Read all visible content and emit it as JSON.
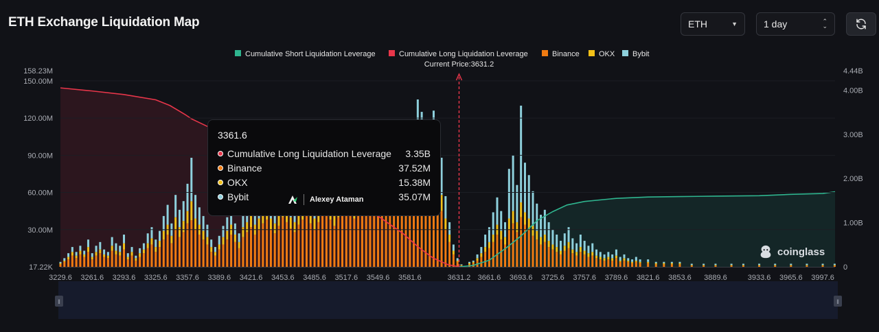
{
  "header": {
    "title": "ETH Exchange Liquidation Map",
    "coin_select": "ETH",
    "range_select": "1 day",
    "refresh_icon": "refresh-icon"
  },
  "colors": {
    "short_line": "#2fb58f",
    "long_line": "#e8364a",
    "binance": "#f07b12",
    "okx": "#f2c018",
    "bybit": "#8ed0dc",
    "background": "#111217"
  },
  "legend": [
    {
      "label": "Cumulative Short Liquidation Leverage",
      "color": "#2fb58f"
    },
    {
      "label": "Cumulative Long Liquidation Leverage",
      "color": "#e8364a"
    },
    {
      "label": "Binance",
      "color": "#f07b12"
    },
    {
      "label": "OKX",
      "color": "#f2c018"
    },
    {
      "label": "Bybit",
      "color": "#8ed0dc"
    }
  ],
  "current_price_label": "Current Price:3631.2",
  "tooltip": {
    "title": "3361.6",
    "rows": [
      {
        "label": "Cumulative Long Liquidation Leverage",
        "value": "3.35B",
        "color": "#e8364a"
      },
      {
        "label": "Binance",
        "value": "37.52M",
        "color": "#f07b12"
      },
      {
        "label": "OKX",
        "value": "15.38M",
        "color": "#f2c018"
      },
      {
        "label": "Bybit",
        "value": "35.07M",
        "color": "#8ed0dc"
      }
    ]
  },
  "watermark_name": "Alexey Ataman",
  "brand": "coinglass",
  "chart_data": {
    "type": "bar",
    "x_tick_labels": [
      "3229.6",
      "3261.6",
      "3293.6",
      "3325.6",
      "3357.6",
      "3389.6",
      "3421.6",
      "3453.6",
      "3485.6",
      "3517.6",
      "3549.6",
      "3581.6",
      "3631.2",
      "3661.6",
      "3693.6",
      "3725.6",
      "3757.6",
      "3789.6",
      "3821.6",
      "3853.6",
      "3889.6",
      "3933.6",
      "3965.6",
      "3997.6"
    ],
    "y_left_tick_labels": [
      "158.23M",
      "150.00M",
      "120.00M",
      "90.00M",
      "60.00M",
      "30.00M",
      "17.22K"
    ],
    "y_right_tick_labels": [
      "4.44B",
      "4.00B",
      "3.00B",
      "2.00B",
      "1.00B",
      "0"
    ],
    "ylim_left": [
      0,
      158.23
    ],
    "ylim_right": [
      0,
      4.44
    ],
    "current_price": 3631.2,
    "series": [
      {
        "name": "Cumulative Long Liquidation Leverage",
        "kind": "line",
        "x": [
          3229.6,
          3261.6,
          3293.6,
          3325.6,
          3340.0,
          3355.0,
          3361.6,
          3389.6,
          3421.6,
          3453.6,
          3485.6,
          3517.6,
          3549.6,
          3575.0,
          3590.0,
          3605.0,
          3620.0,
          3631.2
        ],
        "y": [
          4.05,
          3.98,
          3.9,
          3.78,
          3.65,
          3.45,
          3.35,
          3.05,
          2.7,
          2.3,
          1.95,
          1.55,
          1.15,
          0.75,
          0.45,
          0.2,
          0.05,
          0.0
        ]
      },
      {
        "name": "Cumulative Short Liquidation Leverage",
        "kind": "line",
        "x": [
          3631.2,
          3645.0,
          3661.6,
          3680.0,
          3693.6,
          3710.0,
          3725.6,
          3740.0,
          3757.6,
          3789.6,
          3821.6,
          3853.6,
          3889.6,
          3933.6,
          3965.6,
          3997.6,
          4010.0
        ],
        "y": [
          0.0,
          0.03,
          0.15,
          0.45,
          0.7,
          1.05,
          1.25,
          1.4,
          1.48,
          1.55,
          1.58,
          1.59,
          1.6,
          1.61,
          1.64,
          1.66,
          1.7
        ]
      }
    ],
    "bars_note": "Per-price-level liquidation volume (M), stacked Binance/OKX/Bybit",
    "bars": [
      [
        3229.6,
        2,
        1,
        1
      ],
      [
        3233.6,
        4,
        1,
        2
      ],
      [
        3237.6,
        6,
        2,
        3
      ],
      [
        3241.6,
        9,
        3,
        4
      ],
      [
        3245.6,
        7,
        2,
        3
      ],
      [
        3249.6,
        10,
        3,
        4
      ],
      [
        3253.6,
        8,
        2,
        3
      ],
      [
        3257.6,
        12,
        4,
        6
      ],
      [
        3261.6,
        6,
        2,
        3
      ],
      [
        3265.6,
        9,
        3,
        5
      ],
      [
        3269.6,
        11,
        3,
        6
      ],
      [
        3273.6,
        8,
        2,
        4
      ],
      [
        3277.6,
        7,
        2,
        3
      ],
      [
        3281.6,
        13,
        4,
        7
      ],
      [
        3285.6,
        10,
        3,
        6
      ],
      [
        3289.6,
        9,
        3,
        5
      ],
      [
        3293.6,
        14,
        5,
        7
      ],
      [
        3297.6,
        6,
        2,
        3
      ],
      [
        3301.6,
        9,
        3,
        4
      ],
      [
        3305.6,
        5,
        2,
        2
      ],
      [
        3309.6,
        8,
        3,
        4
      ],
      [
        3313.6,
        11,
        3,
        5
      ],
      [
        3317.6,
        15,
        4,
        8
      ],
      [
        3321.6,
        18,
        5,
        9
      ],
      [
        3325.6,
        12,
        4,
        6
      ],
      [
        3329.6,
        16,
        5,
        8
      ],
      [
        3333.6,
        22,
        7,
        12
      ],
      [
        3337.6,
        26,
        8,
        16
      ],
      [
        3341.6,
        19,
        6,
        10
      ],
      [
        3345.6,
        30,
        10,
        18
      ],
      [
        3349.6,
        24,
        8,
        14
      ],
      [
        3353.6,
        28,
        9,
        16
      ],
      [
        3357.6,
        35,
        10,
        22
      ],
      [
        3361.6,
        37.52,
        15.38,
        35.07
      ],
      [
        3365.6,
        30,
        9,
        19
      ],
      [
        3369.6,
        26,
        8,
        14
      ],
      [
        3373.6,
        22,
        7,
        12
      ],
      [
        3377.6,
        18,
        6,
        10
      ],
      [
        3381.6,
        12,
        4,
        6
      ],
      [
        3385.6,
        9,
        3,
        4
      ],
      [
        3389.6,
        14,
        4,
        7
      ],
      [
        3393.6,
        18,
        6,
        9
      ],
      [
        3397.6,
        22,
        7,
        11
      ],
      [
        3401.6,
        26,
        8,
        12
      ],
      [
        3405.6,
        20,
        6,
        9
      ],
      [
        3409.6,
        15,
        5,
        7
      ],
      [
        3413.6,
        24,
        8,
        12
      ],
      [
        3417.6,
        28,
        8,
        14
      ],
      [
        3421.6,
        32,
        10,
        16
      ],
      [
        3425.6,
        26,
        8,
        12
      ],
      [
        3429.6,
        30,
        9,
        14
      ],
      [
        3433.6,
        35,
        11,
        18
      ],
      [
        3437.6,
        38,
        12,
        19
      ],
      [
        3441.6,
        30,
        9,
        14
      ],
      [
        3445.6,
        27,
        8,
        12
      ],
      [
        3449.6,
        33,
        10,
        16
      ],
      [
        3453.6,
        40,
        12,
        20
      ],
      [
        3457.6,
        36,
        11,
        18
      ],
      [
        3461.6,
        31,
        9,
        15
      ],
      [
        3465.6,
        28,
        8,
        13
      ],
      [
        3469.6,
        34,
        10,
        16
      ],
      [
        3473.6,
        38,
        12,
        18
      ],
      [
        3477.6,
        42,
        13,
        20
      ],
      [
        3481.6,
        35,
        11,
        17
      ],
      [
        3485.6,
        30,
        9,
        14
      ],
      [
        3489.6,
        36,
        11,
        17
      ],
      [
        3493.6,
        41,
        12,
        20
      ],
      [
        3497.6,
        45,
        14,
        22
      ],
      [
        3501.6,
        38,
        11,
        18
      ],
      [
        3505.6,
        33,
        10,
        15
      ],
      [
        3509.6,
        40,
        12,
        19
      ],
      [
        3513.6,
        46,
        14,
        22
      ],
      [
        3517.6,
        50,
        15,
        24
      ],
      [
        3521.6,
        44,
        13,
        21
      ],
      [
        3525.6,
        39,
        12,
        19
      ],
      [
        3529.6,
        47,
        14,
        23
      ],
      [
        3533.6,
        53,
        16,
        25
      ],
      [
        3537.6,
        49,
        15,
        24
      ],
      [
        3541.6,
        43,
        13,
        21
      ],
      [
        3545.6,
        48,
        14,
        23
      ],
      [
        3549.6,
        55,
        17,
        27
      ],
      [
        3553.6,
        60,
        18,
        30
      ],
      [
        3557.6,
        52,
        16,
        26
      ],
      [
        3561.6,
        57,
        17,
        28
      ],
      [
        3565.6,
        62,
        18,
        34
      ],
      [
        3569.6,
        58,
        17,
        30
      ],
      [
        3573.6,
        63,
        19,
        36
      ],
      [
        3577.6,
        55,
        16,
        29
      ],
      [
        3581.6,
        60,
        18,
        34
      ],
      [
        3585.6,
        57,
        17,
        33
      ],
      [
        3589.6,
        65,
        20,
        50
      ],
      [
        3593.6,
        62,
        18,
        45
      ],
      [
        3597.6,
        58,
        17,
        40
      ],
      [
        3601.6,
        55,
        16,
        38
      ],
      [
        3605.6,
        60,
        18,
        48
      ],
      [
        3609.6,
        56,
        17,
        44
      ],
      [
        3613.6,
        45,
        13,
        30
      ],
      [
        3617.6,
        30,
        9,
        18
      ],
      [
        3621.6,
        20,
        6,
        10
      ],
      [
        3625.6,
        10,
        3,
        5
      ],
      [
        3629.6,
        4,
        1,
        2
      ],
      [
        3633.6,
        1,
        0.5,
        0.5
      ],
      [
        3641.6,
        2,
        1,
        1
      ],
      [
        3645.6,
        3,
        1,
        1
      ],
      [
        3649.6,
        5,
        2,
        3
      ],
      [
        3653.6,
        8,
        3,
        5
      ],
      [
        3657.6,
        12,
        4,
        10
      ],
      [
        3661.6,
        15,
        5,
        12
      ],
      [
        3665.6,
        20,
        6,
        18
      ],
      [
        3669.6,
        26,
        8,
        22
      ],
      [
        3673.6,
        22,
        7,
        16
      ],
      [
        3677.6,
        18,
        6,
        12
      ],
      [
        3681.6,
        30,
        9,
        40
      ],
      [
        3685.6,
        35,
        10,
        45
      ],
      [
        3689.6,
        28,
        8,
        30
      ],
      [
        3693.6,
        40,
        12,
        78
      ],
      [
        3697.6,
        34,
        10,
        40
      ],
      [
        3701.6,
        30,
        9,
        35
      ],
      [
        3705.6,
        25,
        8,
        28
      ],
      [
        3709.6,
        22,
        7,
        22
      ],
      [
        3713.6,
        18,
        6,
        18
      ],
      [
        3717.6,
        20,
        6,
        20
      ],
      [
        3721.6,
        16,
        5,
        15
      ],
      [
        3725.6,
        14,
        4,
        12
      ],
      [
        3729.6,
        12,
        4,
        10
      ],
      [
        3733.6,
        10,
        3,
        8
      ],
      [
        3737.6,
        13,
        4,
        10
      ],
      [
        3741.6,
        15,
        5,
        12
      ],
      [
        3745.6,
        11,
        3,
        9
      ],
      [
        3749.6,
        9,
        3,
        7
      ],
      [
        3753.6,
        12,
        4,
        10
      ],
      [
        3757.6,
        10,
        3,
        8
      ],
      [
        3761.6,
        8,
        3,
        6
      ],
      [
        3765.6,
        9,
        3,
        7
      ],
      [
        3769.6,
        7,
        2,
        5
      ],
      [
        3773.6,
        6,
        2,
        4
      ],
      [
        3777.6,
        5,
        2,
        3
      ],
      [
        3781.6,
        6,
        2,
        4
      ],
      [
        3785.6,
        5,
        2,
        3
      ],
      [
        3789.6,
        7,
        2,
        5
      ],
      [
        3793.6,
        4,
        1,
        3
      ],
      [
        3797.6,
        5,
        2,
        3
      ],
      [
        3801.6,
        4,
        1,
        2
      ],
      [
        3805.6,
        3,
        1,
        2
      ],
      [
        3809.6,
        4,
        1,
        3
      ],
      [
        3813.6,
        3,
        1,
        2
      ],
      [
        3821.6,
        3,
        1,
        2
      ],
      [
        3829.6,
        2,
        1,
        1
      ],
      [
        3837.6,
        2,
        1,
        1
      ],
      [
        3845.6,
        2,
        1,
        1
      ],
      [
        3853.6,
        2,
        1,
        1
      ],
      [
        3865.6,
        1,
        0.5,
        1
      ],
      [
        3877.6,
        1,
        0.5,
        1
      ],
      [
        3889.6,
        1,
        0.5,
        1
      ],
      [
        3905.6,
        1,
        0.5,
        1
      ],
      [
        3917.6,
        1,
        0.5,
        1
      ],
      [
        3933.6,
        1,
        0.5,
        1
      ],
      [
        3949.6,
        1,
        0.5,
        1
      ],
      [
        3965.6,
        1,
        0.5,
        1
      ],
      [
        3981.6,
        1,
        0.5,
        1
      ],
      [
        3997.6,
        1,
        0.5,
        1
      ],
      [
        4009.6,
        1,
        0.5,
        1
      ]
    ]
  }
}
